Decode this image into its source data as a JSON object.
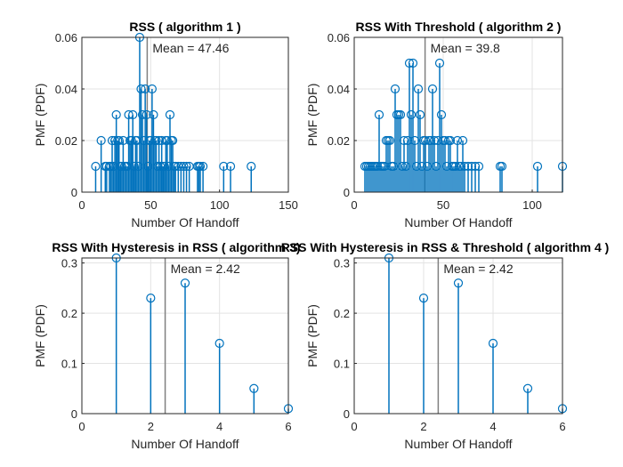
{
  "chart_data": [
    {
      "type": "stem",
      "title": "RSS ( algorithm 1 )",
      "xlabel": "Number Of Handoff",
      "ylabel": "PMF (PDF)",
      "xlim": [
        0,
        150
      ],
      "ylim": [
        0,
        0.06
      ],
      "xticks": [
        "0",
        "50",
        "100",
        "150"
      ],
      "yticks": [
        "0",
        "0.02",
        "0.04",
        "0.06"
      ],
      "grid": true,
      "mean": 47.46,
      "mean_label": "Mean = 47.46",
      "stem_color": "#0072bd",
      "mean_color": "#808080",
      "x": [
        10,
        14,
        17,
        18,
        20,
        21,
        22,
        23,
        24,
        25,
        26,
        27,
        28,
        29,
        30,
        31,
        32,
        33,
        34,
        35,
        36,
        37,
        38,
        39,
        40,
        41,
        42,
        43,
        44,
        45,
        46,
        47,
        48,
        49,
        50,
        51,
        52,
        53,
        54,
        55,
        56,
        57,
        58,
        59,
        60,
        61,
        62,
        63,
        64,
        65,
        66,
        67,
        68,
        70,
        72,
        74,
        76,
        78,
        84,
        85,
        86,
        88,
        103,
        108,
        123
      ],
      "y": [
        0.01,
        0.02,
        0.01,
        0.01,
        0.01,
        0.01,
        0.02,
        0.01,
        0.02,
        0.03,
        0.02,
        0.02,
        0.01,
        0.01,
        0.02,
        0.01,
        0.01,
        0.01,
        0.03,
        0.02,
        0.02,
        0.03,
        0.01,
        0.02,
        0.02,
        0.01,
        0.06,
        0.04,
        0.03,
        0.02,
        0.04,
        0.03,
        0.01,
        0.02,
        0.02,
        0.04,
        0.03,
        0.02,
        0.02,
        0.01,
        0.02,
        0.01,
        0.02,
        0.01,
        0.01,
        0.02,
        0.02,
        0.01,
        0.03,
        0.02,
        0.02,
        0.01,
        0.01,
        0.01,
        0.01,
        0.01,
        0.01,
        0.01,
        0.01,
        0.01,
        0.01,
        0.01,
        0.01,
        0.01,
        0.01
      ]
    },
    {
      "type": "stem",
      "title": "RSS With Threshold ( algorithm 2 )",
      "xlabel": "Number Of Handoff",
      "ylabel": "PMF (PDF)",
      "xlim": [
        0,
        117
      ],
      "ylim": [
        0,
        0.06
      ],
      "xticks": [
        "0",
        "50",
        "100"
      ],
      "yticks": [
        "0",
        "0.02",
        "0.04",
        "0.06"
      ],
      "grid": true,
      "mean": 39.8,
      "mean_label": "Mean = 39.8",
      "stem_color": "#0072bd",
      "mean_color": "#808080",
      "x": [
        6,
        7,
        8,
        9,
        10,
        11,
        12,
        13,
        14,
        15,
        16,
        17,
        18,
        19,
        20,
        21,
        22,
        23,
        24,
        25,
        26,
        27,
        28,
        29,
        30,
        31,
        32,
        33,
        34,
        35,
        36,
        37,
        38,
        39,
        40,
        41,
        42,
        43,
        44,
        45,
        46,
        47,
        48,
        49,
        50,
        51,
        52,
        53,
        54,
        55,
        56,
        57,
        58,
        59,
        60,
        61,
        62,
        64,
        66,
        68,
        70,
        82,
        83,
        103,
        117
      ],
      "y": [
        0.01,
        0.01,
        0.01,
        0.01,
        0.01,
        0.01,
        0.01,
        0.01,
        0.03,
        0.01,
        0.01,
        0.01,
        0.02,
        0.02,
        0.02,
        0.01,
        0.01,
        0.04,
        0.03,
        0.03,
        0.03,
        0.01,
        0.02,
        0.01,
        0.02,
        0.05,
        0.03,
        0.05,
        0.02,
        0.01,
        0.04,
        0.03,
        0.01,
        0.02,
        0.02,
        0.01,
        0.02,
        0.02,
        0.04,
        0.02,
        0.01,
        0.02,
        0.05,
        0.03,
        0.02,
        0.02,
        0.01,
        0.02,
        0.02,
        0.01,
        0.01,
        0.01,
        0.02,
        0.01,
        0.01,
        0.02,
        0.01,
        0.01,
        0.01,
        0.01,
        0.01,
        0.01,
        0.01,
        0.01,
        0.01
      ]
    },
    {
      "type": "stem",
      "title": "RSS With Hysteresis in RSS ( algorithm 3)",
      "xlabel": "Number Of Handoff",
      "ylabel": "PMF (PDF)",
      "xlim": [
        0,
        6
      ],
      "ylim": [
        0,
        0.31
      ],
      "xticks": [
        "0",
        "2",
        "4",
        "6"
      ],
      "yticks": [
        "0",
        "0.1",
        "0.2",
        "0.3"
      ],
      "grid": true,
      "mean": 2.42,
      "mean_label": "Mean = 2.42",
      "stem_color": "#0072bd",
      "mean_color": "#808080",
      "x": [
        1,
        2,
        3,
        4,
        5,
        6
      ],
      "y": [
        0.31,
        0.23,
        0.26,
        0.14,
        0.05,
        0.01
      ]
    },
    {
      "type": "stem",
      "title": "RSS With Hysteresis in RSS & Threshold ( algorithm 4 )",
      "xlabel": "Number Of Handoff",
      "ylabel": "PMF (PDF)",
      "xlim": [
        0,
        6
      ],
      "ylim": [
        0,
        0.31
      ],
      "xticks": [
        "0",
        "2",
        "4",
        "6"
      ],
      "yticks": [
        "0",
        "0.1",
        "0.2",
        "0.3"
      ],
      "grid": true,
      "mean": 2.42,
      "mean_label": "Mean = 2.42",
      "stem_color": "#0072bd",
      "mean_color": "#808080",
      "x": [
        1,
        2,
        3,
        4,
        5,
        6
      ],
      "y": [
        0.31,
        0.23,
        0.26,
        0.14,
        0.05,
        0.01
      ]
    }
  ]
}
